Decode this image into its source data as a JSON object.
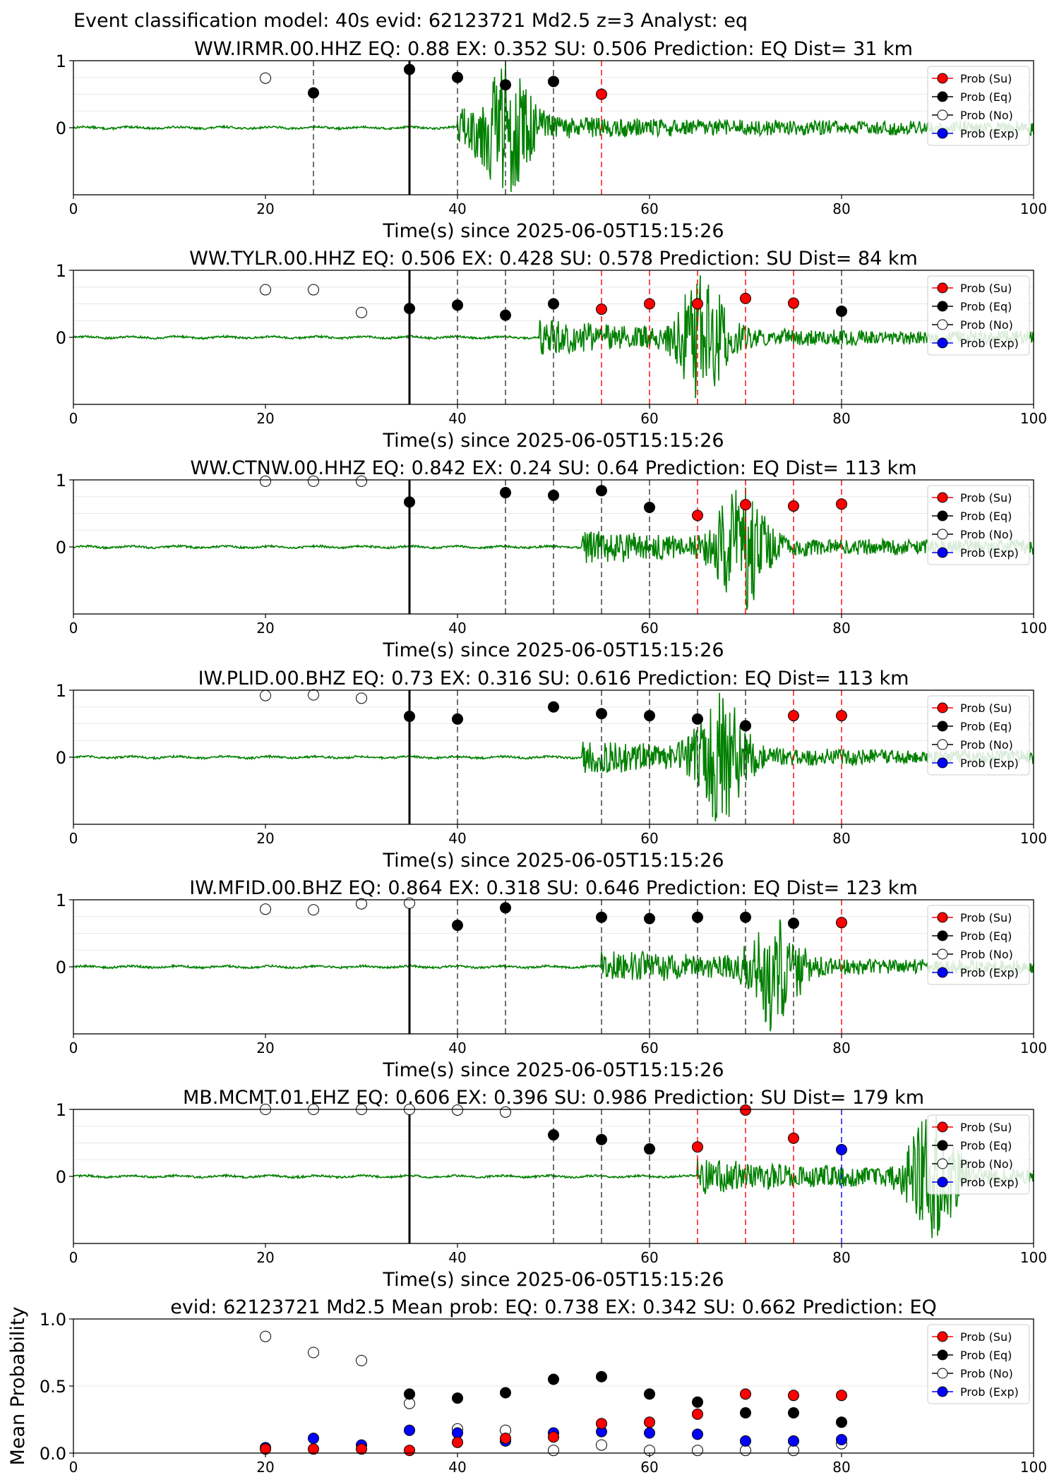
{
  "suptitle": "Event classification model: 40s evid: 62123721 Md2.5 z=3 Analyst: eq",
  "colors": {
    "su": "#ff0000",
    "eq": "#000000",
    "no": "#ffffff",
    "exp": "#0000ff",
    "waveform": "#008000",
    "eq_line": "#333333",
    "su_line": "#ff0000",
    "exp_line": "#0000ff"
  },
  "legend_labels": [
    "Prob (Su)",
    "Prob (Eq)",
    "Prob (No)",
    "Prob (Exp)"
  ],
  "chart_data": [
    {
      "type": "scatter",
      "title": "WW.IRMR.00.HHZ   EQ: 0.88  EX: 0.352  SU: 0.506   Prediction: EQ    Dist= 31 km",
      "xlabel": "Time(s) since 2025-06-05T15:15:26",
      "xlim": [
        0,
        100
      ],
      "ylim": [
        -1,
        1
      ],
      "xticks": [
        "0",
        "20",
        "40",
        "60",
        "80",
        "100"
      ],
      "yticks": [
        "1",
        "0"
      ],
      "arrival": 35,
      "onset": 40,
      "peak": 45,
      "windows": [
        {
          "t": 25,
          "c": "eq"
        },
        {
          "t": 40,
          "c": "eq"
        },
        {
          "t": 45,
          "c": "eq"
        },
        {
          "t": 50,
          "c": "eq"
        },
        {
          "t": 55,
          "c": "su"
        }
      ],
      "series": [
        {
          "name": "Prob (No)",
          "x": [
            20
          ],
          "y": [
            0.74
          ]
        },
        {
          "name": "Prob (Eq)",
          "x": [
            25,
            35,
            40,
            45,
            50
          ],
          "y": [
            0.52,
            0.87,
            0.75,
            0.64,
            0.69
          ]
        },
        {
          "name": "Prob (Su)",
          "x": [
            55
          ],
          "y": [
            0.5
          ]
        }
      ]
    },
    {
      "type": "scatter",
      "title": "WW.TYLR.00.HHZ   EQ: 0.506  EX: 0.428  SU: 0.578   Prediction: SU    Dist= 84 km",
      "xlabel": "Time(s) since 2025-06-05T15:15:26",
      "xlim": [
        0,
        100
      ],
      "ylim": [
        -1,
        1
      ],
      "xticks": [
        "0",
        "20",
        "40",
        "60",
        "80",
        "100"
      ],
      "yticks": [
        "1",
        "0"
      ],
      "arrival": 35,
      "onset": 48.5,
      "peak": 65.5,
      "windows": [
        {
          "t": 40,
          "c": "eq"
        },
        {
          "t": 45,
          "c": "eq"
        },
        {
          "t": 50,
          "c": "eq"
        },
        {
          "t": 55,
          "c": "su"
        },
        {
          "t": 60,
          "c": "su"
        },
        {
          "t": 65,
          "c": "su"
        },
        {
          "t": 70,
          "c": "su"
        },
        {
          "t": 75,
          "c": "su"
        },
        {
          "t": 80,
          "c": "eq"
        }
      ],
      "series": [
        {
          "name": "Prob (No)",
          "x": [
            20,
            25,
            30
          ],
          "y": [
            0.71,
            0.71,
            0.37
          ]
        },
        {
          "name": "Prob (Eq)",
          "x": [
            35,
            40,
            45,
            50,
            80
          ],
          "y": [
            0.43,
            0.48,
            0.33,
            0.5,
            0.39
          ]
        },
        {
          "name": "Prob (Su)",
          "x": [
            55,
            60,
            65,
            70,
            75
          ],
          "y": [
            0.42,
            0.5,
            0.5,
            0.58,
            0.51
          ]
        }
      ]
    },
    {
      "type": "scatter",
      "title": "WW.CTNW.00.HHZ   EQ: 0.842  EX: 0.24  SU: 0.64   Prediction: EQ    Dist= 113 km",
      "xlabel": "Time(s) since 2025-06-05T15:15:26",
      "xlim": [
        0,
        100
      ],
      "ylim": [
        -1,
        1
      ],
      "xticks": [
        "0",
        "20",
        "40",
        "60",
        "80",
        "100"
      ],
      "yticks": [
        "1",
        "0"
      ],
      "arrival": 35,
      "onset": 53,
      "peak": 69.5,
      "windows": [
        {
          "t": 45,
          "c": "eq"
        },
        {
          "t": 50,
          "c": "eq"
        },
        {
          "t": 55,
          "c": "eq"
        },
        {
          "t": 60,
          "c": "eq"
        },
        {
          "t": 65,
          "c": "su"
        },
        {
          "t": 70,
          "c": "su"
        },
        {
          "t": 75,
          "c": "su"
        },
        {
          "t": 80,
          "c": "su"
        }
      ],
      "series": [
        {
          "name": "Prob (No)",
          "x": [
            20,
            25,
            30
          ],
          "y": [
            0.98,
            0.98,
            0.98
          ]
        },
        {
          "name": "Prob (Eq)",
          "x": [
            35,
            45,
            50,
            55,
            60
          ],
          "y": [
            0.67,
            0.81,
            0.77,
            0.84,
            0.59
          ]
        },
        {
          "name": "Prob (Su)",
          "x": [
            65,
            70,
            75,
            80
          ],
          "y": [
            0.47,
            0.63,
            0.61,
            0.64
          ]
        }
      ]
    },
    {
      "type": "scatter",
      "title": "IW.PLID.00.BHZ   EQ: 0.73  EX: 0.316  SU: 0.616   Prediction: EQ    Dist= 113 km",
      "xlabel": "Time(s) since 2025-06-05T15:15:26",
      "xlim": [
        0,
        100
      ],
      "ylim": [
        -1,
        1
      ],
      "xticks": [
        "0",
        "20",
        "40",
        "60",
        "80",
        "100"
      ],
      "yticks": [
        "1",
        "0"
      ],
      "arrival": 35,
      "onset": 53,
      "peak": 67.5,
      "windows": [
        {
          "t": 40,
          "c": "eq"
        },
        {
          "t": 55,
          "c": "eq"
        },
        {
          "t": 60,
          "c": "eq"
        },
        {
          "t": 65,
          "c": "eq"
        },
        {
          "t": 70,
          "c": "eq"
        },
        {
          "t": 75,
          "c": "su"
        },
        {
          "t": 80,
          "c": "su"
        }
      ],
      "series": [
        {
          "name": "Prob (No)",
          "x": [
            20,
            25,
            30
          ],
          "y": [
            0.92,
            0.93,
            0.88
          ]
        },
        {
          "name": "Prob (Eq)",
          "x": [
            35,
            40,
            50,
            55,
            60,
            65,
            70
          ],
          "y": [
            0.61,
            0.57,
            0.75,
            0.65,
            0.62,
            0.57,
            0.47
          ]
        },
        {
          "name": "Prob (Su)",
          "x": [
            75,
            80
          ],
          "y": [
            0.62,
            0.62
          ]
        }
      ]
    },
    {
      "type": "scatter",
      "title": "IW.MFID.00.BHZ   EQ: 0.864  EX: 0.318  SU: 0.646   Prediction: EQ    Dist= 123 km",
      "xlabel": "Time(s) since 2025-06-05T15:15:26",
      "xlim": [
        0,
        100
      ],
      "ylim": [
        -1,
        1
      ],
      "xticks": [
        "0",
        "20",
        "40",
        "60",
        "80",
        "100"
      ],
      "yticks": [
        "1",
        "0"
      ],
      "arrival": 35,
      "onset": 55,
      "peak": 73,
      "windows": [
        {
          "t": 40,
          "c": "eq"
        },
        {
          "t": 45,
          "c": "eq"
        },
        {
          "t": 55,
          "c": "eq"
        },
        {
          "t": 60,
          "c": "eq"
        },
        {
          "t": 65,
          "c": "eq"
        },
        {
          "t": 70,
          "c": "eq"
        },
        {
          "t": 75,
          "c": "eq"
        },
        {
          "t": 80,
          "c": "su"
        }
      ],
      "series": [
        {
          "name": "Prob (No)",
          "x": [
            20,
            25,
            30,
            35
          ],
          "y": [
            0.86,
            0.85,
            0.94,
            0.95
          ]
        },
        {
          "name": "Prob (Eq)",
          "x": [
            40,
            45,
            55,
            60,
            65,
            70,
            75
          ],
          "y": [
            0.62,
            0.88,
            0.74,
            0.72,
            0.74,
            0.74,
            0.65
          ]
        },
        {
          "name": "Prob (Su)",
          "x": [
            80
          ],
          "y": [
            0.66
          ]
        }
      ]
    },
    {
      "type": "scatter",
      "title": "MB.MCMT.01.EHZ   EQ: 0.606  EX: 0.396  SU: 0.986   Prediction: SU    Dist= 179 km",
      "xlabel": "Time(s) since 2025-06-05T15:15:26",
      "xlim": [
        0,
        100
      ],
      "ylim": [
        -1,
        1
      ],
      "xticks": [
        "0",
        "20",
        "40",
        "60",
        "80",
        "100"
      ],
      "yticks": [
        "1",
        "0"
      ],
      "arrival": 35,
      "onset": 65,
      "peak": 89.5,
      "windows": [
        {
          "t": 50,
          "c": "eq"
        },
        {
          "t": 55,
          "c": "eq"
        },
        {
          "t": 60,
          "c": "eq"
        },
        {
          "t": 65,
          "c": "su"
        },
        {
          "t": 70,
          "c": "su"
        },
        {
          "t": 75,
          "c": "su"
        },
        {
          "t": 80,
          "c": "exp"
        }
      ],
      "series": [
        {
          "name": "Prob (No)",
          "x": [
            20,
            25,
            30,
            35,
            40,
            45
          ],
          "y": [
            1.0,
            1.0,
            1.0,
            1.0,
            0.99,
            0.96
          ]
        },
        {
          "name": "Prob (Eq)",
          "x": [
            50,
            55,
            60
          ],
          "y": [
            0.62,
            0.55,
            0.41
          ]
        },
        {
          "name": "Prob (Su)",
          "x": [
            65,
            70,
            75
          ],
          "y": [
            0.44,
            0.99,
            0.57
          ]
        },
        {
          "name": "Prob (Exp)",
          "x": [
            80
          ],
          "y": [
            0.4
          ]
        }
      ]
    },
    {
      "type": "scatter",
      "title": "evid: 62123721  Md2.5   Mean prob:   EQ: 0.738  EX: 0.342  SU: 0.662   Prediction: EQ",
      "ylabel": "Mean Probability",
      "xlim": [
        0,
        100
      ],
      "ylim": [
        0,
        1
      ],
      "xticks": [
        "0",
        "20",
        "40",
        "60",
        "80",
        "100"
      ],
      "yticks": [
        "1.0",
        "0.5",
        "0.0"
      ],
      "series": [
        {
          "name": "Prob (No)",
          "x": [
            20,
            25,
            30,
            35,
            40,
            45,
            50,
            55,
            60,
            65,
            70,
            75,
            80
          ],
          "y": [
            0.87,
            0.75,
            0.69,
            0.37,
            0.18,
            0.17,
            0.02,
            0.06,
            0.02,
            0.02,
            0.02,
            0.02,
            0.07
          ]
        },
        {
          "name": "Prob (Exp)",
          "x": [
            20,
            25,
            30,
            35,
            40,
            45,
            50,
            55,
            60,
            65,
            70,
            75,
            80
          ],
          "y": [
            0.04,
            0.11,
            0.06,
            0.17,
            0.15,
            0.09,
            0.15,
            0.16,
            0.15,
            0.14,
            0.09,
            0.09,
            0.1
          ]
        },
        {
          "name": "Prob (Su)",
          "x": [
            20,
            25,
            30,
            35,
            40,
            45,
            50,
            55,
            60,
            65,
            70,
            75,
            80
          ],
          "y": [
            0.03,
            0.03,
            0.03,
            0.02,
            0.08,
            0.11,
            0.12,
            0.22,
            0.23,
            0.29,
            0.44,
            0.43,
            0.43
          ]
        },
        {
          "name": "Prob (Eq)",
          "x": [
            35,
            40,
            45,
            50,
            55,
            60,
            65,
            70,
            75,
            80
          ],
          "y": [
            0.44,
            0.41,
            0.45,
            0.55,
            0.57,
            0.44,
            0.38,
            0.3,
            0.3,
            0.23
          ]
        }
      ]
    }
  ]
}
